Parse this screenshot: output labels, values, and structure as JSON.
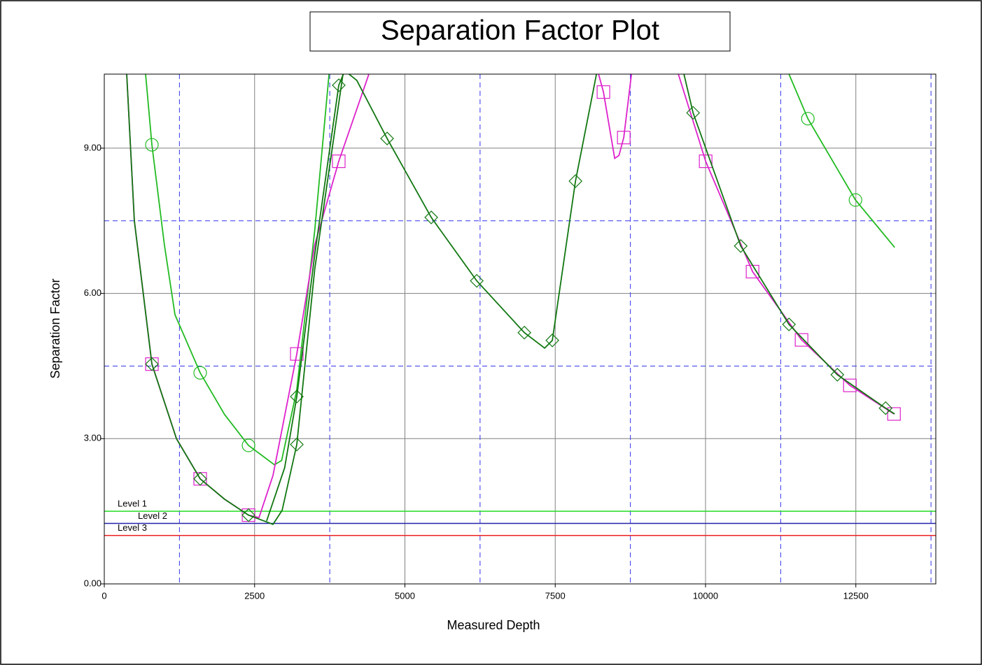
{
  "chart_data": {
    "type": "line",
    "title": "Separation Factor Plot",
    "x_label": "Measured Depth",
    "y_label": "Separation Factor",
    "xlim": [
      0,
      13830
    ],
    "ylim": [
      0,
      10.53
    ],
    "xticks": [
      0,
      2500,
      5000,
      7500,
      10000,
      12500
    ],
    "yticks": [
      {
        "value": 0,
        "label": "0.00"
      },
      {
        "value": 3,
        "label": "3.00"
      },
      {
        "value": 6,
        "label": "6.00"
      },
      {
        "value": 9,
        "label": "9.00"
      }
    ],
    "grid": true,
    "grid_color": "#808080",
    "minor_xgrid": [
      1250,
      3750,
      6250,
      8750,
      11250,
      13750
    ],
    "minor_ygrid": [
      4.5,
      7.5
    ],
    "minor_grid_color": "#3333ee",
    "levels": [
      {
        "label": "Level 1",
        "value": 1.5,
        "color": "#22dd22"
      },
      {
        "label": "Level 2",
        "value": 1.25,
        "color": "#2222aa"
      },
      {
        "label": "Level 3",
        "value": 1.0,
        "color": "#ee2222"
      }
    ],
    "series": [
      {
        "color": "#22bb22",
        "marker": "circle",
        "x": [
          687,
          792,
          1000,
          1176,
          1595,
          2000,
          2399,
          2830,
          2950,
          3200,
          3500,
          3738,
          null,
          11388,
          11702,
          12494,
          13146
        ],
        "values": [
          10.53,
          9.07,
          7.0,
          5.56,
          4.36,
          3.5,
          2.86,
          2.46,
          2.55,
          4.0,
          7.3,
          10.53,
          null,
          10.53,
          9.61,
          7.93,
          6.95
        ],
        "marker_x": [
          792,
          1595,
          2399,
          11702,
          12494
        ],
        "marker_values": [
          9.07,
          4.36,
          2.86,
          9.61,
          7.93
        ]
      },
      {
        "color": "#dd22cc",
        "marker": "square",
        "x": [
          373,
          500,
          792,
          1200,
          1595,
          2000,
          2399,
          2573,
          2806,
          3202,
          3500,
          3900,
          4401,
          null,
          8221,
          8302,
          8489,
          8560,
          8640,
          8768,
          null,
          9548,
          10002,
          10782,
          11597,
          12401,
          13135
        ],
        "values": [
          10.53,
          7.5,
          4.54,
          3.0,
          2.17,
          1.75,
          1.42,
          1.37,
          2.24,
          4.75,
          7.0,
          8.73,
          10.53,
          null,
          10.53,
          10.16,
          8.79,
          8.85,
          9.22,
          10.53,
          null,
          10.53,
          8.73,
          6.45,
          5.04,
          4.1,
          3.51
        ],
        "marker_x": [
          792,
          1595,
          2399,
          3202,
          3900,
          8302,
          8640,
          10002,
          10782,
          11597,
          12401,
          13135
        ],
        "marker_values": [
          4.54,
          2.17,
          1.42,
          4.75,
          8.73,
          10.16,
          9.22,
          8.73,
          6.45,
          5.04,
          4.1,
          3.51
        ]
      },
      {
        "color": "#117711",
        "marker": "diamond",
        "x": [
          373,
          500,
          792,
          1200,
          1595,
          2000,
          2399,
          2806,
          2958,
          3202,
          3500,
          3970
        ],
        "values": [
          10.53,
          7.5,
          4.54,
          3.0,
          2.17,
          1.75,
          1.42,
          1.23,
          1.52,
          2.88,
          6.5,
          10.53
        ],
        "marker_x": [
          792,
          1595,
          2399,
          3202
        ],
        "marker_values": [
          4.54,
          2.17,
          1.42,
          2.88
        ]
      },
      {
        "color": "#117711",
        "marker": "diamond",
        "x": [
          2700,
          3000,
          3202,
          3500,
          3900,
          4000,
          4200,
          4704,
          5438,
          6195,
          6987,
          7324,
          7452,
          7837,
          8186,
          null,
          9641,
          9793,
          10585,
          11388,
          12192,
          12995,
          13146
        ],
        "values": [
          1.3,
          2.4,
          3.87,
          6.8,
          10.3,
          10.6,
          10.4,
          9.2,
          7.57,
          6.26,
          5.19,
          4.87,
          5.03,
          8.32,
          10.53,
          null,
          10.53,
          9.73,
          6.98,
          5.36,
          4.32,
          3.63,
          3.51
        ],
        "marker_x": [
          3202,
          3900,
          4704,
          5438,
          6195,
          6987,
          7452,
          7837,
          9793,
          10585,
          11388,
          12192,
          12995
        ],
        "marker_values": [
          3.87,
          10.3,
          9.2,
          7.57,
          6.26,
          5.19,
          5.03,
          8.32,
          9.73,
          6.98,
          5.36,
          4.32,
          3.63
        ]
      }
    ]
  }
}
